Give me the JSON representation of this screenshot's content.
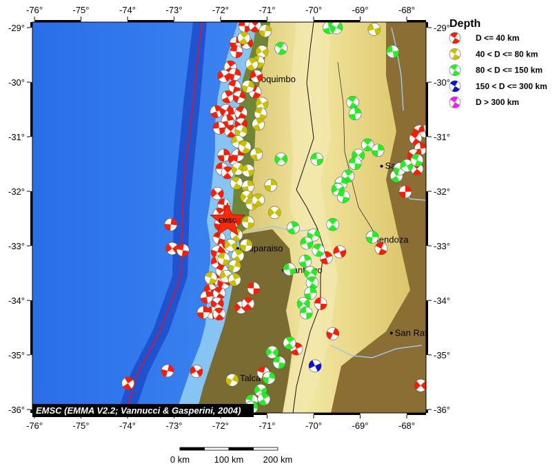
{
  "map": {
    "lon_range": [
      -76.04,
      -67.57
    ],
    "lat_range": [
      -36.07,
      -28.9
    ],
    "lon_ticks": [
      "-76°",
      "-75°",
      "-74°",
      "-73°",
      "-72°",
      "-71°",
      "-70°",
      "-69°",
      "-68°"
    ],
    "lat_ticks": [
      "-29°",
      "-30°",
      "-31°",
      "-32°",
      "-33°",
      "-34°",
      "-35°",
      "-36°"
    ],
    "attribution": "EMSC (EMMA V2.2; Vannucci & Gasperini, 2004)",
    "epicenter": {
      "label": "EMSC",
      "lon": -71.85,
      "lat": -32.54,
      "color": "#ff2a00"
    },
    "trench_color": "#e8141e",
    "cities": [
      {
        "name": "Coquimbo",
        "lon": -71.34,
        "lat": -29.95
      },
      {
        "name": "Valparaiso",
        "lon": -71.63,
        "lat": -33.05
      },
      {
        "name": "Santiago",
        "lon": -70.65,
        "lat": -33.45
      },
      {
        "name": "Talca",
        "lon": -71.66,
        "lat": -35.43
      },
      {
        "name": "San Juan",
        "lon": -68.54,
        "lat": -31.54
      },
      {
        "name": "Mendoza",
        "lon": -68.83,
        "lat": -32.89
      },
      {
        "name": "San Rafael",
        "lon": -68.33,
        "lat": -34.6
      }
    ]
  },
  "legend": {
    "title": "Depth",
    "items": [
      {
        "label": "D <= 40 km",
        "color": "#ff1a00"
      },
      {
        "label": "40 < D <= 80 km",
        "color": "#c8c000"
      },
      {
        "label": "80 < D <= 150 km",
        "color": "#22f022"
      },
      {
        "label": "150 < D <= 300 km",
        "color": "#0a10e0"
      },
      {
        "label": "D > 300 km",
        "color": "#ff10ff"
      }
    ]
  },
  "scale_bar": {
    "labels": [
      "0 km",
      "100 km",
      "200 km"
    ]
  },
  "events": [
    [
      -71.48,
      -28.97,
      0
    ],
    [
      -71.26,
      -28.97,
      0
    ],
    [
      -71.67,
      -29.28,
      0
    ],
    [
      -71.44,
      -29.28,
      0
    ],
    [
      -71.66,
      -29.44,
      0
    ],
    [
      -71.79,
      -29.72,
      0
    ],
    [
      -71.7,
      -29.86,
      0
    ],
    [
      -71.93,
      -29.89,
      0
    ],
    [
      -71.7,
      -30.08,
      0
    ],
    [
      -71.85,
      -30.27,
      0
    ],
    [
      -71.6,
      -30.27,
      0
    ],
    [
      -71.23,
      -29.89,
      0
    ],
    [
      -71.26,
      -30.18,
      0
    ],
    [
      -72.09,
      -30.54,
      0
    ],
    [
      -71.88,
      -30.52,
      0
    ],
    [
      -71.7,
      -30.58,
      0
    ],
    [
      -71.56,
      -30.56,
      0
    ],
    [
      -71.85,
      -30.71,
      0
    ],
    [
      -71.56,
      -30.77,
      0
    ],
    [
      -72.03,
      -30.84,
      0
    ],
    [
      -71.78,
      -30.9,
      0
    ],
    [
      -71.93,
      -31.34,
      0
    ],
    [
      -71.7,
      -31.41,
      0
    ],
    [
      -71.97,
      -31.59,
      0
    ],
    [
      -71.85,
      -31.66,
      0
    ],
    [
      -71.63,
      -31.34,
      0
    ],
    [
      -72.07,
      -32.04,
      0
    ],
    [
      -71.93,
      -32.25,
      0
    ],
    [
      -72.03,
      -32.42,
      0
    ],
    [
      -72.0,
      -32.61,
      0
    ],
    [
      -71.7,
      -32.54,
      0
    ],
    [
      -72.03,
      -32.86,
      0
    ],
    [
      -71.93,
      -33.05,
      0
    ],
    [
      -72.07,
      -33.11,
      0
    ],
    [
      -72.07,
      -33.3,
      0
    ],
    [
      -71.97,
      -33.46,
      0
    ],
    [
      -72.15,
      -33.62,
      0
    ],
    [
      -71.93,
      -33.68,
      0
    ],
    [
      -72.22,
      -33.81,
      0
    ],
    [
      -72.03,
      -33.87,
      0
    ],
    [
      -72.3,
      -33.94,
      0
    ],
    [
      -72.07,
      -34.06,
      0
    ],
    [
      -72.18,
      -34.23,
      0
    ],
    [
      -72.03,
      -34.25,
      0
    ],
    [
      -72.37,
      -34.22,
      0
    ],
    [
      -71.56,
      -34.13,
      0
    ],
    [
      -71.29,
      -33.78,
      0
    ],
    [
      -71.41,
      -34.06,
      0
    ],
    [
      -73.07,
      -32.61,
      0
    ],
    [
      -73.04,
      -33.05,
      0
    ],
    [
      -72.81,
      -33.08,
      0
    ],
    [
      -73.99,
      -35.52,
      0
    ],
    [
      -73.14,
      -35.29,
      0
    ],
    [
      -72.52,
      -35.3,
      0
    ],
    [
      -71.08,
      -35.33,
      0
    ],
    [
      -70.37,
      -34.89,
      0
    ],
    [
      -69.59,
      -34.61,
      0
    ],
    [
      -69.44,
      -33.11,
      0
    ],
    [
      -68.55,
      -33.05,
      0
    ],
    [
      -69.73,
      -33.22,
      0
    ],
    [
      -67.73,
      -30.9,
      0
    ],
    [
      -67.61,
      -30.9,
      0
    ],
    [
      -67.81,
      -31.03,
      0
    ],
    [
      -67.7,
      -31.22,
      0
    ],
    [
      -67.85,
      -31.34,
      0
    ],
    [
      -67.88,
      -31.53,
      0
    ],
    [
      -67.78,
      -31.59,
      0
    ],
    [
      -68.03,
      -32.01,
      0
    ],
    [
      -67.7,
      -35.56,
      0
    ],
    [
      -69.85,
      -34.06,
      0
    ],
    [
      -71.5,
      -29.19,
      1
    ],
    [
      -71.04,
      -29.06,
      1
    ],
    [
      -71.11,
      -29.44,
      1
    ],
    [
      -71.19,
      -29.63,
      1
    ],
    [
      -71.33,
      -29.67,
      1
    ],
    [
      -71.41,
      -30.08,
      1
    ],
    [
      -71.11,
      -30.39,
      1
    ],
    [
      -71.14,
      -30.58,
      1
    ],
    [
      -71.19,
      -30.77,
      1
    ],
    [
      -71.56,
      -30.9,
      1
    ],
    [
      -71.63,
      -31.09,
      1
    ],
    [
      -71.48,
      -31.19,
      1
    ],
    [
      -71.23,
      -31.32,
      1
    ],
    [
      -71.63,
      -31.59,
      1
    ],
    [
      -71.41,
      -31.62,
      1
    ],
    [
      -71.66,
      -31.85,
      1
    ],
    [
      -71.41,
      -31.91,
      1
    ],
    [
      -71.44,
      -32.1,
      1
    ],
    [
      -71.33,
      -32.23,
      1
    ],
    [
      -71.19,
      -32.16,
      1
    ],
    [
      -70.92,
      -31.89,
      1
    ],
    [
      -70.84,
      -32.39,
      1
    ],
    [
      -71.41,
      -32.57,
      1
    ],
    [
      -71.66,
      -32.8,
      1
    ],
    [
      -71.45,
      -32.99,
      1
    ],
    [
      -71.78,
      -32.99,
      1
    ],
    [
      -71.93,
      -33.24,
      1
    ],
    [
      -71.63,
      -33.18,
      1
    ],
    [
      -71.7,
      -33.37,
      1
    ],
    [
      -71.88,
      -33.56,
      1
    ],
    [
      -72.21,
      -33.59,
      1
    ],
    [
      -71.7,
      -33.62,
      1
    ],
    [
      -71.75,
      -35.46,
      1
    ],
    [
      -68.7,
      -29.03,
      1
    ],
    [
      -70.7,
      -29.38,
      2
    ],
    [
      -69.67,
      -29.0,
      2
    ],
    [
      -69.51,
      -29.0,
      2
    ],
    [
      -68.3,
      -29.44,
      2
    ],
    [
      -69.16,
      -30.37,
      2
    ],
    [
      -69.11,
      -30.58,
      2
    ],
    [
      -70.7,
      -31.41,
      2
    ],
    [
      -69.93,
      -31.41,
      2
    ],
    [
      -68.84,
      -31.15,
      2
    ],
    [
      -68.62,
      -31.25,
      2
    ],
    [
      -69.04,
      -31.34,
      2
    ],
    [
      -69.11,
      -31.49,
      2
    ],
    [
      -69.26,
      -31.72,
      2
    ],
    [
      -69.41,
      -31.85,
      2
    ],
    [
      -69.48,
      -31.97,
      2
    ],
    [
      -69.36,
      -32.1,
      2
    ],
    [
      -68.22,
      -31.72,
      2
    ],
    [
      -68.15,
      -31.59,
      2
    ],
    [
      -68.0,
      -31.53,
      2
    ],
    [
      -67.78,
      -31.43,
      2
    ],
    [
      -70.44,
      -32.67,
      2
    ],
    [
      -70.0,
      -32.8,
      2
    ],
    [
      -70.15,
      -32.95,
      2
    ],
    [
      -69.9,
      -33.08,
      2
    ],
    [
      -70.18,
      -33.28,
      2
    ],
    [
      -70.07,
      -33.49,
      2
    ],
    [
      -70.52,
      -33.43,
      2
    ],
    [
      -70.03,
      -33.68,
      2
    ],
    [
      -70.07,
      -33.87,
      2
    ],
    [
      -70.22,
      -34.06,
      2
    ],
    [
      -70.16,
      -34.23,
      2
    ],
    [
      -69.59,
      -32.61,
      2
    ],
    [
      -68.74,
      -32.84,
      2
    ],
    [
      -70.89,
      -34.95,
      2
    ],
    [
      -70.74,
      -35.14,
      2
    ],
    [
      -70.52,
      -34.78,
      2
    ],
    [
      -70.96,
      -35.42,
      2
    ],
    [
      -71.14,
      -35.65,
      2
    ],
    [
      -71.33,
      -35.84,
      2
    ],
    [
      -71.07,
      -35.81,
      2
    ],
    [
      -71.33,
      -35.96,
      2
    ],
    [
      -69.97,
      -35.2,
      3
    ]
  ]
}
